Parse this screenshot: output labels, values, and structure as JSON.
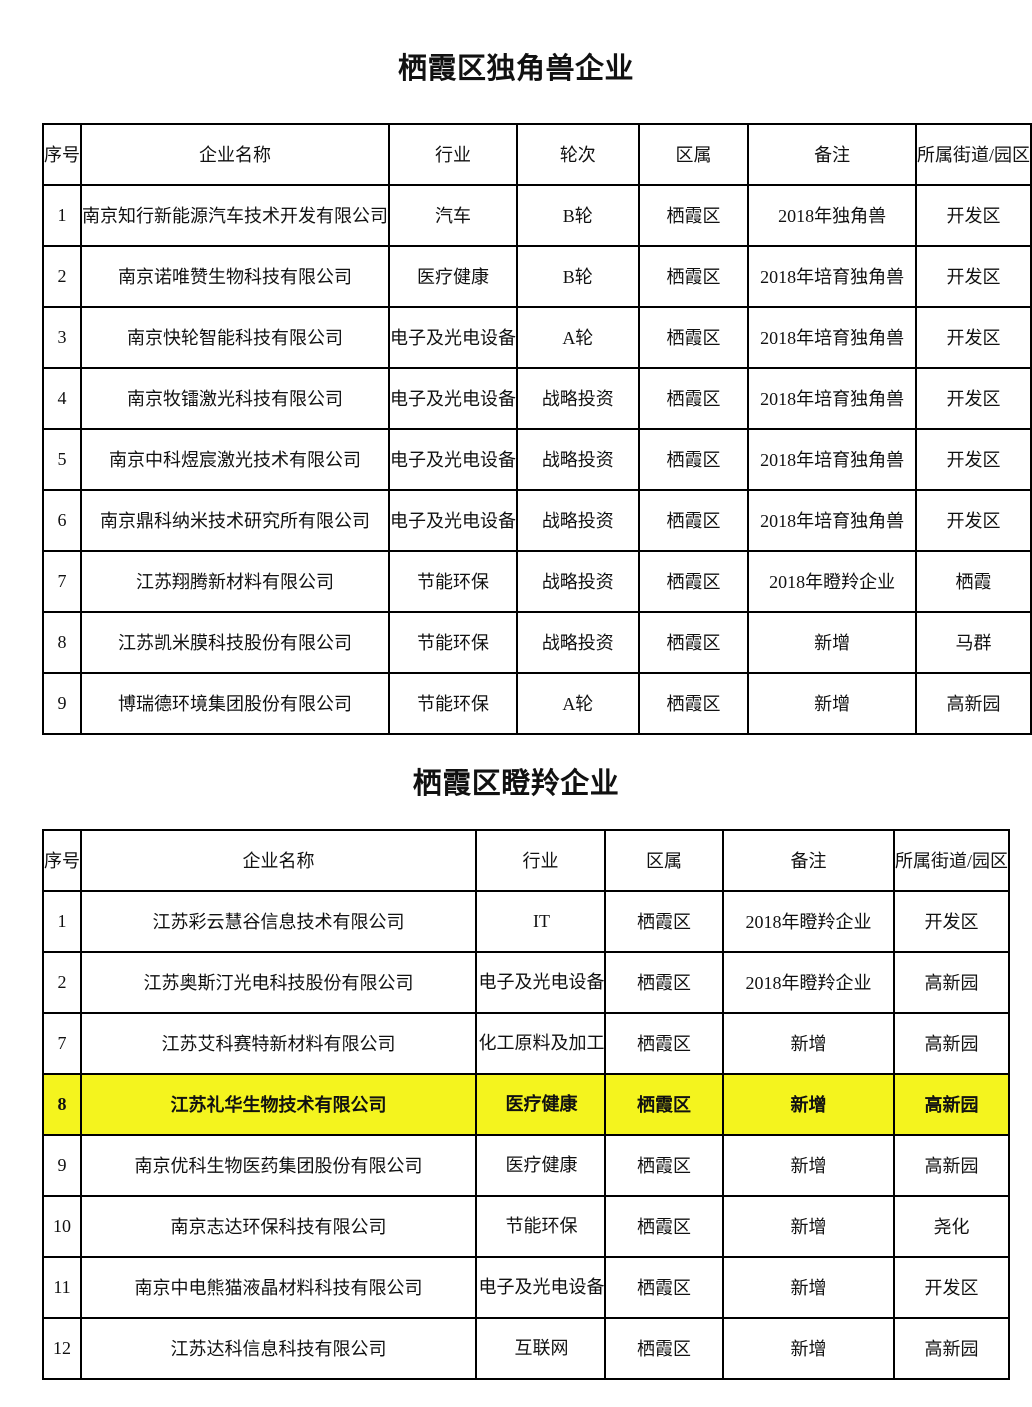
{
  "colors": {
    "highlight_bg": "#f4f41e",
    "border": "#000000",
    "text": "#111111"
  },
  "tables": [
    {
      "title": "栖霞区独角兽企业",
      "columns": [
        "序号",
        "企业名称",
        "行业",
        "轮次",
        "区属",
        "备注",
        "所属街道/园区"
      ],
      "rows": [
        [
          "1",
          "南京知行新能源汽车技术开发有限公司",
          "汽车",
          "B轮",
          "栖霞区",
          "2018年独角兽",
          "开发区"
        ],
        [
          "2",
          "南京诺唯赞生物科技有限公司",
          "医疗健康",
          "B轮",
          "栖霞区",
          "2018年培育独角兽",
          "开发区"
        ],
        [
          "3",
          "南京快轮智能科技有限公司",
          "电子及光电设备",
          "A轮",
          "栖霞区",
          "2018年培育独角兽",
          "开发区"
        ],
        [
          "4",
          "南京牧镭激光科技有限公司",
          "电子及光电设备",
          "战略投资",
          "栖霞区",
          "2018年培育独角兽",
          "开发区"
        ],
        [
          "5",
          "南京中科煜宸激光技术有限公司",
          "电子及光电设备",
          "战略投资",
          "栖霞区",
          "2018年培育独角兽",
          "开发区"
        ],
        [
          "6",
          "南京鼎科纳米技术研究所有限公司",
          "电子及光电设备",
          "战略投资",
          "栖霞区",
          "2018年培育独角兽",
          "开发区"
        ],
        [
          "7",
          "江苏翔腾新材料有限公司",
          "节能环保",
          "战略投资",
          "栖霞区",
          "2018年瞪羚企业",
          "栖霞"
        ],
        [
          "8",
          "江苏凯米膜科技股份有限公司",
          "节能环保",
          "战略投资",
          "栖霞区",
          "新增",
          "马群"
        ],
        [
          "9",
          "博瑞德环境集团股份有限公司",
          "节能环保",
          "A轮",
          "栖霞区",
          "新增",
          "高新园"
        ]
      ],
      "highlight_rows": []
    },
    {
      "title": "栖霞区瞪羚企业",
      "columns": [
        "序号",
        "企业名称",
        "行业",
        "区属",
        "备注",
        "所属街道/园区"
      ],
      "rows": [
        [
          "1",
          "江苏彩云慧谷信息技术有限公司",
          "IT",
          "栖霞区",
          "2018年瞪羚企业",
          "开发区"
        ],
        [
          "2",
          "江苏奥斯汀光电科技股份有限公司",
          "电子及光电设备",
          "栖霞区",
          "2018年瞪羚企业",
          "高新园"
        ],
        [
          "7",
          "江苏艾科赛特新材料有限公司",
          "化工原料及加工",
          "栖霞区",
          "新增",
          "高新园"
        ],
        [
          "8",
          "江苏礼华生物技术有限公司",
          "医疗健康",
          "栖霞区",
          "新增",
          "高新园"
        ],
        [
          "9",
          "南京优科生物医药集团股份有限公司",
          "医疗健康",
          "栖霞区",
          "新增",
          "高新园"
        ],
        [
          "10",
          "南京志达环保科技有限公司",
          "节能环保",
          "栖霞区",
          "新增",
          "尧化"
        ],
        [
          "11",
          "南京中电熊猫液晶材料科技有限公司",
          "电子及光电设备",
          "栖霞区",
          "新增",
          "开发区"
        ],
        [
          "12",
          "江苏达科信息科技有限公司",
          "互联网",
          "栖霞区",
          "新增",
          "高新园"
        ]
      ],
      "highlight_rows": [
        3
      ]
    }
  ]
}
